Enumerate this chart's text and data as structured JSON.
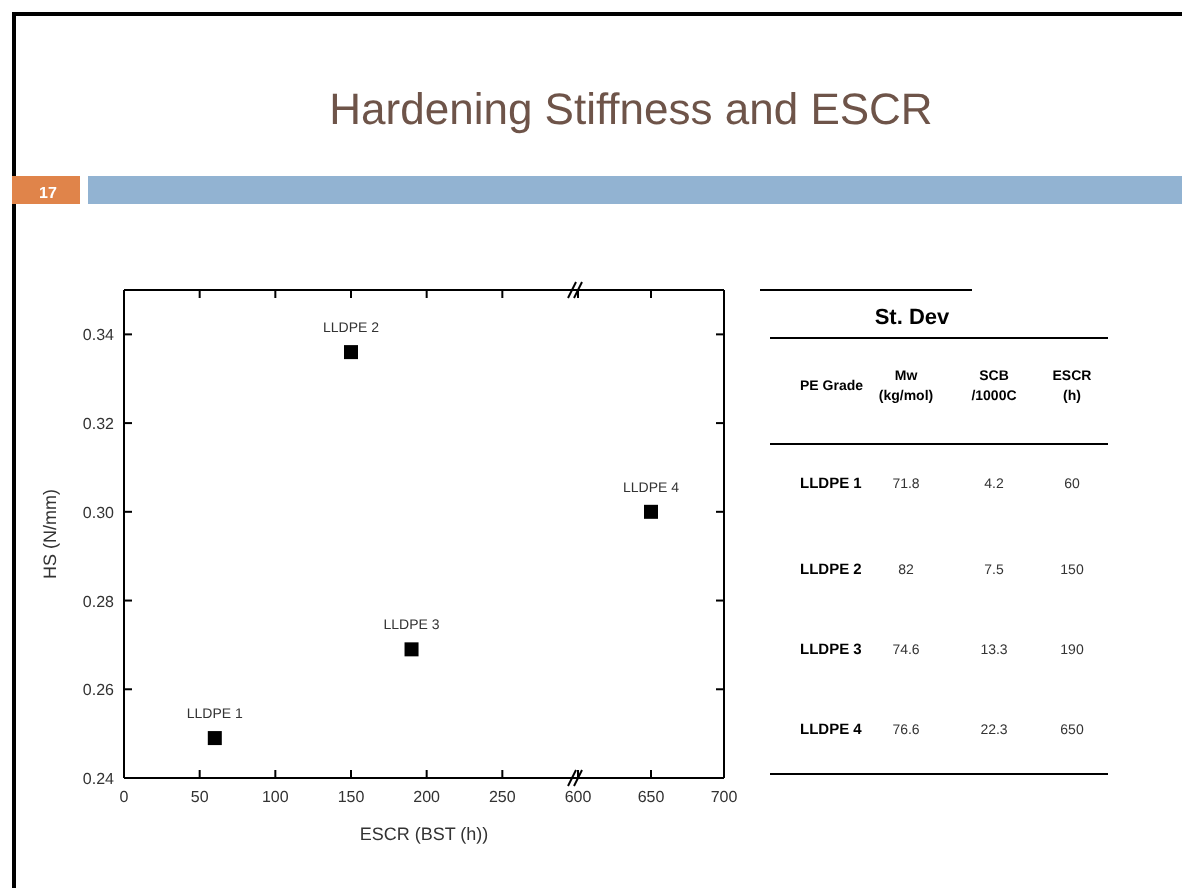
{
  "chart_data": [
    {
      "type": "scatter",
      "title": "Hardening Stiffness and ESCR",
      "xlabel": "ESCR (BST (h))",
      "ylabel": "HS (N/mm)",
      "x": [
        60,
        150,
        190
      ],
      "values": [
        0.249,
        0.336,
        0.269
      ],
      "color": "#000000",
      "marker": "square",
      "xlim": [
        0,
        300
      ],
      "xticks": [
        0,
        50,
        100,
        150,
        200,
        250
      ],
      "ylim": [
        0.24,
        0.35
      ],
      "yticks": [
        0.24,
        0.26,
        0.28,
        {
          "value": 0.3,
          "label": "0.30"
        },
        0.32,
        0.34
      ],
      "annotations": [
        "17",
        {
          "text": "LLDPE 1",
          "x": 60,
          "y": 0.249
        },
        {
          "text": "LLDPE 2",
          "x": 150,
          "y": 0.336
        },
        {
          "text": "LLDPE 3",
          "x": 190,
          "y": 0.269
        }
      ]
    },
    {
      "type": "scatter",
      "x": [
        650
      ],
      "values": [
        0.3
      ],
      "color": "#000000",
      "marker": "square",
      "xlim": [
        600,
        700
      ],
      "xticks": [
        600,
        650,
        700
      ],
      "ylim": [
        0.24,
        0.35
      ],
      "yticks": [
        0.24,
        0.26,
        0.28,
        0.3,
        0.32,
        0.34
      ],
      "tick_labels": "x",
      "annotations": [
        {
          "text": "LLDPE 4",
          "x": 650,
          "y": 0.3
        }
      ]
    },
    {
      "type": "other",
      "title": "St. Dev",
      "annotations": [
        "PE Grade",
        "Mw\n(kg/mol)",
        "SCB\n/1000C",
        "ESCR\n(h)",
        "LLDPE 1",
        "71.8",
        "4.2",
        "60",
        "LLDPE 2",
        "82",
        "7.5",
        "150",
        "LLDPE 3",
        "74.6",
        "13.3",
        "190",
        "LLDPE 4",
        "76.6",
        "22.3",
        "650"
      ]
    }
  ]
}
